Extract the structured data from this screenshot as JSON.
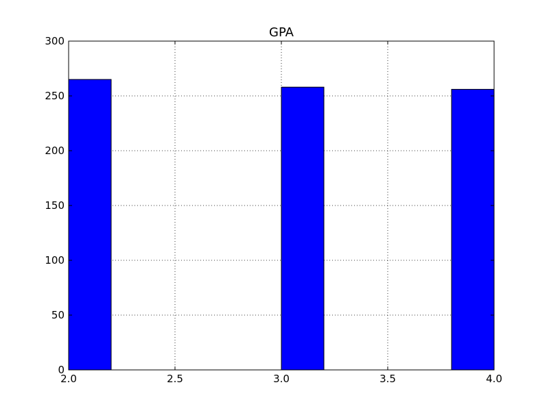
{
  "chart_data": {
    "type": "bar",
    "title": "GPA",
    "xlabel": "",
    "ylabel": "",
    "xlim": [
      2.0,
      4.0
    ],
    "ylim": [
      0,
      300
    ],
    "x_ticks": [
      "2.0",
      "2.5",
      "3.0",
      "3.5",
      "4.0"
    ],
    "y_ticks": [
      "0",
      "50",
      "100",
      "150",
      "200",
      "250",
      "300"
    ],
    "grid": true,
    "bar_color": "#0000ff",
    "bins": [
      {
        "x0": 2.0,
        "x1": 2.2,
        "value": 265
      },
      {
        "x0": 3.0,
        "x1": 3.2,
        "value": 258
      },
      {
        "x0": 3.8,
        "x1": 4.0,
        "value": 256
      }
    ]
  }
}
